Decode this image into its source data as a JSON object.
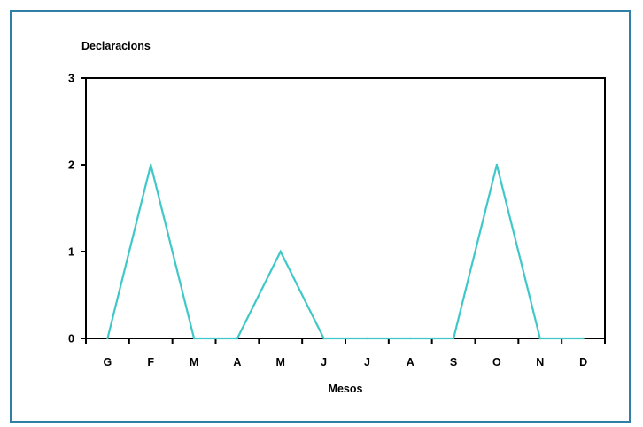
{
  "chart_data": {
    "type": "line",
    "ylabel": "Declaracions",
    "xlabel": "Mesos",
    "categories": [
      "G",
      "F",
      "M",
      "A",
      "M",
      "J",
      "J",
      "A",
      "S",
      "O",
      "N",
      "D"
    ],
    "series": [
      {
        "values": [
          0,
          2,
          0,
          0,
          1,
          0,
          0,
          0,
          0,
          2,
          0,
          0
        ]
      }
    ],
    "ylim": [
      0,
      3
    ],
    "yticks": [
      0,
      1,
      2,
      3
    ],
    "grid": false,
    "colors": {
      "line": "#40c8c8",
      "frame": "#2f7fa6"
    }
  }
}
